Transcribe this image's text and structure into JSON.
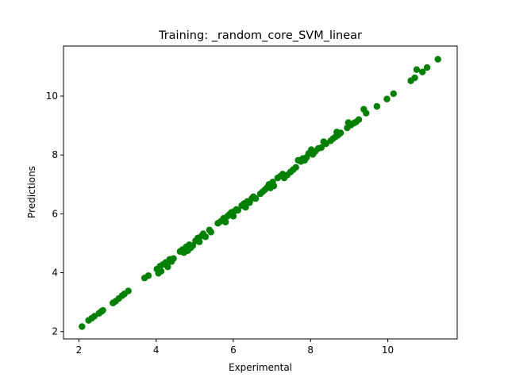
{
  "chart_data": {
    "type": "scatter",
    "title": "Training: _random_core_SVM_linear",
    "xlabel": "Experimental",
    "ylabel": "Predictions",
    "xlim": [
      1.6,
      11.8
    ],
    "ylim": [
      1.75,
      11.7
    ],
    "xticks": [
      2,
      4,
      6,
      8,
      10
    ],
    "yticks": [
      2,
      4,
      6,
      8,
      10
    ],
    "grid": false,
    "marker_color": "#008000",
    "series": [
      {
        "points": [
          [
            2.08,
            2.17
          ],
          [
            2.25,
            2.38
          ],
          [
            2.33,
            2.45
          ],
          [
            2.4,
            2.52
          ],
          [
            2.52,
            2.62
          ],
          [
            2.58,
            2.68
          ],
          [
            2.62,
            2.72
          ],
          [
            2.88,
            2.97
          ],
          [
            2.95,
            3.03
          ],
          [
            3.03,
            3.12
          ],
          [
            3.12,
            3.22
          ],
          [
            3.18,
            3.28
          ],
          [
            3.28,
            3.38
          ],
          [
            3.7,
            3.82
          ],
          [
            3.8,
            3.9
          ],
          [
            4.02,
            4.12
          ],
          [
            4.06,
            3.98
          ],
          [
            4.1,
            4.22
          ],
          [
            4.13,
            4.05
          ],
          [
            4.18,
            4.28
          ],
          [
            4.25,
            4.35
          ],
          [
            4.3,
            4.2
          ],
          [
            4.35,
            4.45
          ],
          [
            4.4,
            4.38
          ],
          [
            4.45,
            4.48
          ],
          [
            4.62,
            4.72
          ],
          [
            4.68,
            4.78
          ],
          [
            4.72,
            4.68
          ],
          [
            4.78,
            4.88
          ],
          [
            4.82,
            4.75
          ],
          [
            4.86,
            4.95
          ],
          [
            4.9,
            4.85
          ],
          [
            4.95,
            4.92
          ],
          [
            5.02,
            5.08
          ],
          [
            5.08,
            5.18
          ],
          [
            5.12,
            5.05
          ],
          [
            5.18,
            5.25
          ],
          [
            5.22,
            5.32
          ],
          [
            5.28,
            5.22
          ],
          [
            5.38,
            5.45
          ],
          [
            5.42,
            5.38
          ],
          [
            5.6,
            5.68
          ],
          [
            5.68,
            5.75
          ],
          [
            5.75,
            5.85
          ],
          [
            5.8,
            5.72
          ],
          [
            5.85,
            5.92
          ],
          [
            5.9,
            5.98
          ],
          [
            5.95,
            6.05
          ],
          [
            6.0,
            5.92
          ],
          [
            6.02,
            6.08
          ],
          [
            6.08,
            6.15
          ],
          [
            6.12,
            6.12
          ],
          [
            6.22,
            6.28
          ],
          [
            6.28,
            6.35
          ],
          [
            6.32,
            6.22
          ],
          [
            6.36,
            6.42
          ],
          [
            6.42,
            6.38
          ],
          [
            6.48,
            6.52
          ],
          [
            6.52,
            6.58
          ],
          [
            6.58,
            6.52
          ],
          [
            6.7,
            6.68
          ],
          [
            6.76,
            6.75
          ],
          [
            6.82,
            6.82
          ],
          [
            6.88,
            6.9
          ],
          [
            6.92,
            7.0
          ],
          [
            6.96,
            6.88
          ],
          [
            7.02,
            7.08
          ],
          [
            7.05,
            6.95
          ],
          [
            7.15,
            7.22
          ],
          [
            7.22,
            7.28
          ],
          [
            7.28,
            7.35
          ],
          [
            7.32,
            7.22
          ],
          [
            7.4,
            7.32
          ],
          [
            7.48,
            7.42
          ],
          [
            7.55,
            7.5
          ],
          [
            7.62,
            7.58
          ],
          [
            7.68,
            7.82
          ],
          [
            7.75,
            7.78
          ],
          [
            7.8,
            7.88
          ],
          [
            7.85,
            7.82
          ],
          [
            7.9,
            7.92
          ],
          [
            7.95,
            8.05
          ],
          [
            8.02,
            8.18
          ],
          [
            8.06,
            8.02
          ],
          [
            8.12,
            8.12
          ],
          [
            8.2,
            8.22
          ],
          [
            8.28,
            8.25
          ],
          [
            8.34,
            8.45
          ],
          [
            8.4,
            8.38
          ],
          [
            8.52,
            8.48
          ],
          [
            8.58,
            8.55
          ],
          [
            8.65,
            8.62
          ],
          [
            8.68,
            8.78
          ],
          [
            8.72,
            8.68
          ],
          [
            8.78,
            8.75
          ],
          [
            8.95,
            8.92
          ],
          [
            8.98,
            9.1
          ],
          [
            9.05,
            9.02
          ],
          [
            9.12,
            9.08
          ],
          [
            9.18,
            9.12
          ],
          [
            9.25,
            9.2
          ],
          [
            9.38,
            9.55
          ],
          [
            9.44,
            9.42
          ],
          [
            9.72,
            9.65
          ],
          [
            9.98,
            9.9
          ],
          [
            10.15,
            10.08
          ],
          [
            10.6,
            10.52
          ],
          [
            10.7,
            10.62
          ],
          [
            10.75,
            10.9
          ],
          [
            10.9,
            10.82
          ],
          [
            11.02,
            10.97
          ],
          [
            11.3,
            11.25
          ]
        ]
      }
    ]
  }
}
